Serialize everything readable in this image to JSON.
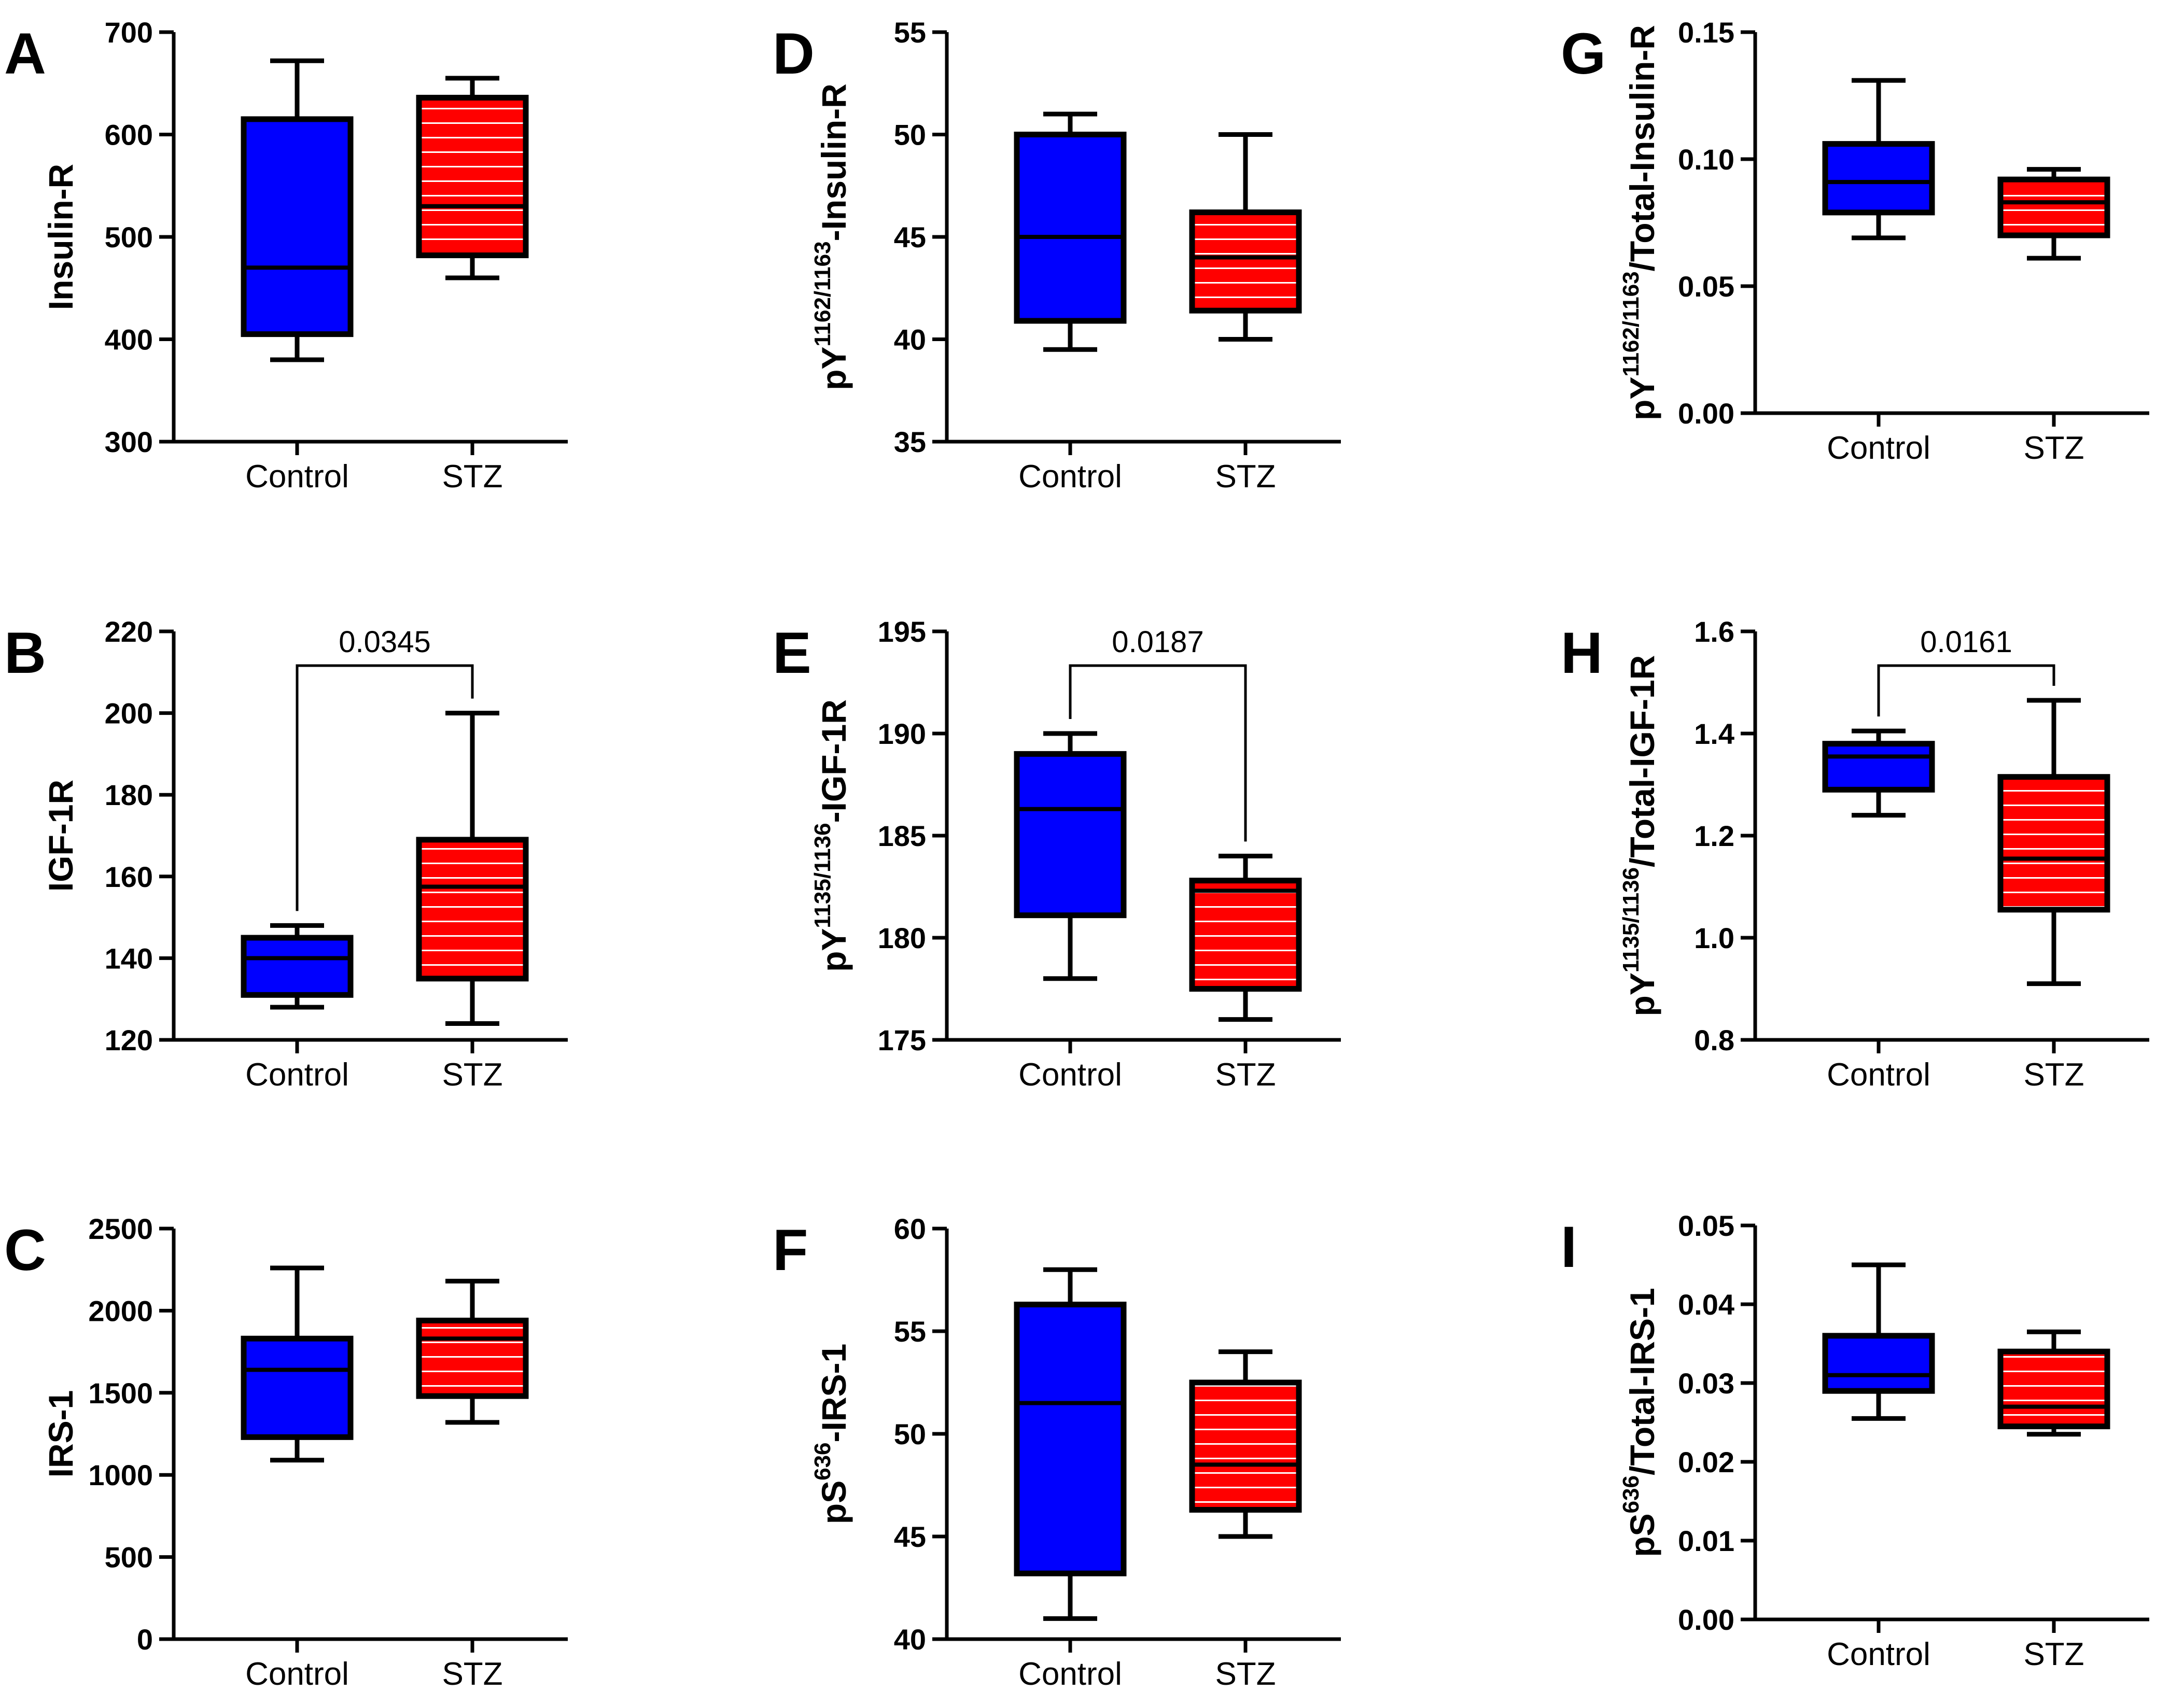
{
  "chart_data": [
    {
      "panel": "A",
      "type": "box",
      "ylabel": {
        "parts": [
          {
            "t": "Insulin-R"
          }
        ]
      },
      "categories": [
        "Control",
        "STZ"
      ],
      "ylim": [
        300,
        700
      ],
      "yticks": [
        300,
        400,
        500,
        600,
        700
      ],
      "tick_decimals": 0,
      "boxes": [
        {
          "min": 380,
          "q1": 405,
          "median": 470,
          "q3": 615,
          "max": 672
        },
        {
          "min": 460,
          "q1": 482,
          "median": 530,
          "q3": 636,
          "max": 655
        }
      ],
      "pvalue": null
    },
    {
      "panel": "B",
      "type": "box",
      "ylabel": {
        "parts": [
          {
            "t": "IGF-1R"
          }
        ]
      },
      "categories": [
        "Control",
        "STZ"
      ],
      "ylim": [
        120,
        220
      ],
      "yticks": [
        120,
        140,
        160,
        180,
        200,
        220
      ],
      "tick_decimals": 0,
      "boxes": [
        {
          "min": 128,
          "q1": 131,
          "median": 140,
          "q3": 145,
          "max": 148
        },
        {
          "min": 124,
          "q1": 135,
          "median": 157.5,
          "q3": 169,
          "max": 200
        }
      ],
      "pvalue": "0.0345"
    },
    {
      "panel": "C",
      "type": "box",
      "ylabel": {
        "parts": [
          {
            "t": "IRS-1"
          }
        ]
      },
      "categories": [
        "Control",
        "STZ"
      ],
      "ylim": [
        0,
        2500
      ],
      "yticks": [
        0,
        500,
        1000,
        1500,
        2000,
        2500
      ],
      "tick_decimals": 0,
      "boxes": [
        {
          "min": 1090,
          "q1": 1230,
          "median": 1640,
          "q3": 1830,
          "max": 2260
        },
        {
          "min": 1320,
          "q1": 1480,
          "median": 1830,
          "q3": 1940,
          "max": 2180
        }
      ],
      "pvalue": null
    },
    {
      "panel": "D",
      "type": "box",
      "ylabel": {
        "parts": [
          {
            "t": "pY"
          },
          {
            "t": "1162/1163",
            "sup": true
          },
          {
            "t": "-Insulin-R"
          }
        ]
      },
      "categories": [
        "Control",
        "STZ"
      ],
      "ylim": [
        35,
        55
      ],
      "yticks": [
        35,
        40,
        45,
        50,
        55
      ],
      "tick_decimals": 0,
      "boxes": [
        {
          "min": 39.5,
          "q1": 40.9,
          "median": 45,
          "q3": 50,
          "max": 51
        },
        {
          "min": 40,
          "q1": 41.4,
          "median": 44,
          "q3": 46.2,
          "max": 50
        }
      ],
      "pvalue": null
    },
    {
      "panel": "E",
      "type": "box",
      "ylabel": {
        "parts": [
          {
            "t": "pY"
          },
          {
            "t": "1135/1136",
            "sup": true
          },
          {
            "t": "-IGF-1R"
          }
        ]
      },
      "categories": [
        "Control",
        "STZ"
      ],
      "ylim": [
        175,
        195
      ],
      "yticks": [
        175,
        180,
        185,
        190,
        195
      ],
      "tick_decimals": 0,
      "boxes": [
        {
          "min": 178,
          "q1": 181.1,
          "median": 186.3,
          "q3": 189,
          "max": 190
        },
        {
          "min": 176,
          "q1": 177.5,
          "median": 182.3,
          "q3": 182.8,
          "max": 184
        }
      ],
      "pvalue": "0.0187"
    },
    {
      "panel": "F",
      "type": "box",
      "ylabel": {
        "parts": [
          {
            "t": "pS"
          },
          {
            "t": "636",
            "sup": true
          },
          {
            "t": "-IRS-1"
          }
        ]
      },
      "categories": [
        "Control",
        "STZ"
      ],
      "ylim": [
        40,
        60
      ],
      "yticks": [
        40,
        45,
        50,
        55,
        60
      ],
      "tick_decimals": 0,
      "boxes": [
        {
          "min": 41,
          "q1": 43.2,
          "median": 51.5,
          "q3": 56.3,
          "max": 58
        },
        {
          "min": 45,
          "q1": 46.3,
          "median": 48.5,
          "q3": 52.5,
          "max": 54
        }
      ],
      "pvalue": null
    },
    {
      "panel": "G",
      "type": "box",
      "ylabel": {
        "parts": [
          {
            "t": "pY"
          },
          {
            "t": "1162/1163",
            "sup": true
          },
          {
            "t": "/Total-Insulin-R"
          }
        ]
      },
      "categories": [
        "Control",
        "STZ"
      ],
      "ylim": [
        0,
        0.15
      ],
      "yticks": [
        0,
        0.05,
        0.1,
        0.15
      ],
      "tick_decimals": 2,
      "boxes": [
        {
          "min": 0.069,
          "q1": 0.079,
          "median": 0.091,
          "q3": 0.106,
          "max": 0.131
        },
        {
          "min": 0.061,
          "q1": 0.07,
          "median": 0.083,
          "q3": 0.092,
          "max": 0.096
        }
      ],
      "pvalue": null
    },
    {
      "panel": "H",
      "type": "box",
      "ylabel": {
        "parts": [
          {
            "t": "pY"
          },
          {
            "t": "1135/1136",
            "sup": true
          },
          {
            "t": "/Total-IGF-1R"
          }
        ]
      },
      "categories": [
        "Control",
        "STZ"
      ],
      "ylim": [
        0.8,
        1.6
      ],
      "yticks": [
        0.8,
        1.0,
        1.2,
        1.4,
        1.6
      ],
      "tick_decimals": 1,
      "boxes": [
        {
          "min": 1.24,
          "q1": 1.29,
          "median": 1.355,
          "q3": 1.38,
          "max": 1.405
        },
        {
          "min": 0.91,
          "q1": 1.055,
          "median": 1.155,
          "q3": 1.315,
          "max": 1.465
        }
      ],
      "pvalue": "0.0161"
    },
    {
      "panel": "I",
      "type": "box",
      "ylabel": {
        "parts": [
          {
            "t": "pS"
          },
          {
            "t": "636",
            "sup": true
          },
          {
            "t": "/Total-IRS-1"
          }
        ]
      },
      "categories": [
        "Control",
        "STZ"
      ],
      "ylim": [
        0,
        0.05
      ],
      "yticks": [
        0,
        0.01,
        0.02,
        0.03,
        0.04,
        0.05
      ],
      "tick_decimals": 2,
      "boxes": [
        {
          "min": 0.0255,
          "q1": 0.029,
          "median": 0.031,
          "q3": 0.036,
          "max": 0.045
        },
        {
          "min": 0.0235,
          "q1": 0.0245,
          "median": 0.027,
          "q3": 0.034,
          "max": 0.0365
        }
      ],
      "pvalue": null
    }
  ],
  "colors": {
    "control": "#0000ff",
    "stz": "#ff0000",
    "stripe": "#ffffff",
    "stroke": "#000000"
  }
}
